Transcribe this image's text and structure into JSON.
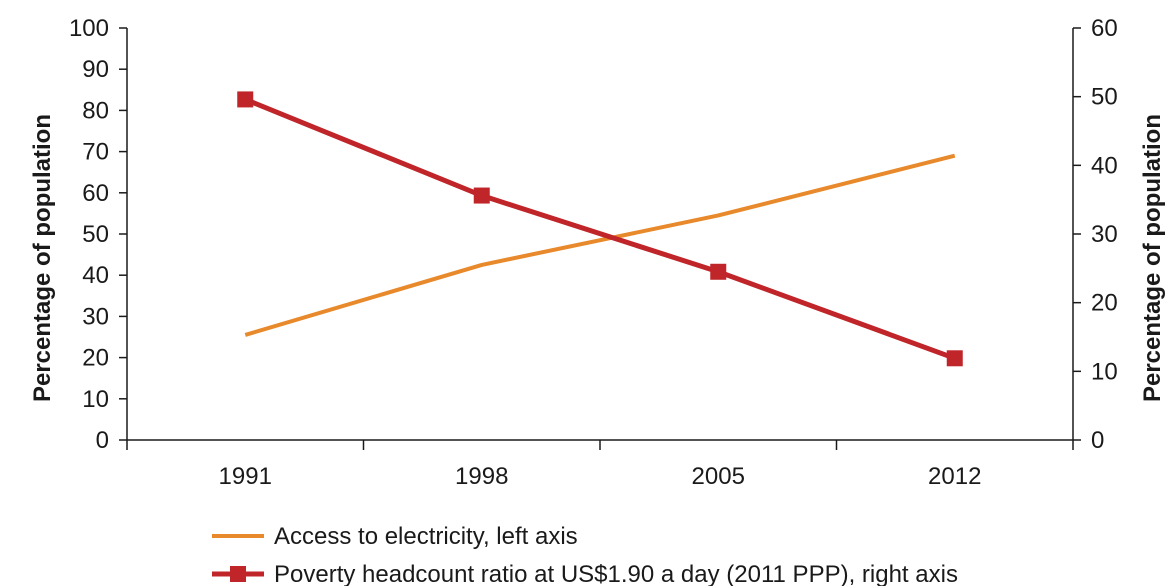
{
  "chart_data": {
    "type": "line",
    "categories": [
      "1991",
      "1998",
      "2005",
      "2012"
    ],
    "y_left": {
      "label": "Percentage of population",
      "lim": [
        0,
        100
      ],
      "ticks": [
        "0",
        "10",
        "20",
        "30",
        "40",
        "50",
        "60",
        "70",
        "80",
        "90",
        "100"
      ]
    },
    "y_right": {
      "label": "Percentage of population",
      "lim": [
        0,
        60
      ],
      "ticks": [
        "0",
        "10",
        "20",
        "30",
        "40",
        "50",
        "60"
      ]
    },
    "series": [
      {
        "name": "Access to electricity, left axis",
        "axis": "left",
        "values": [
          25.5,
          42.5,
          54.5,
          69
        ],
        "color": "#e8892b",
        "marker": "none"
      },
      {
        "name": "Poverty headcount ratio at US$1.90 a day (2011 PPP), right axis",
        "axis": "right",
        "values": [
          49.6,
          35.6,
          24.5,
          11.9
        ],
        "color": "#c0252a",
        "marker": "square"
      }
    ],
    "grid": false,
    "legend_position": "bottom-center"
  }
}
